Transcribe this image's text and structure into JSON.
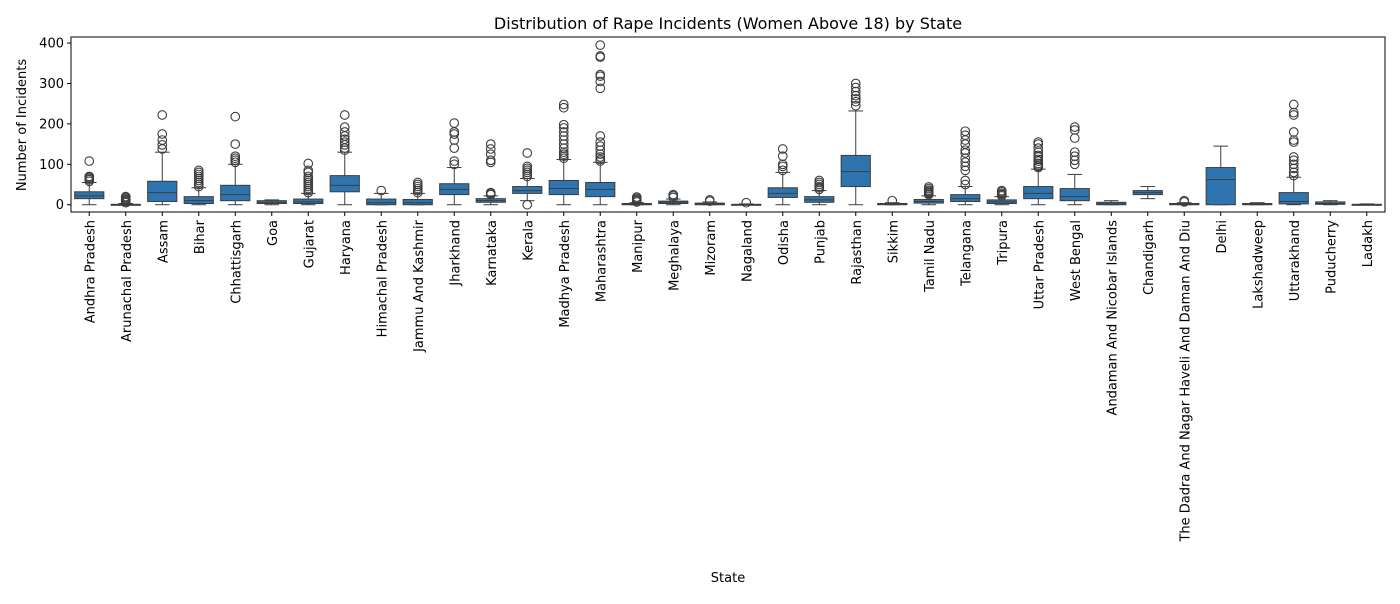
{
  "chart_data": {
    "type": "box",
    "title": "Distribution of Rape Incidents (Women Above 18) by State",
    "xlabel": "State",
    "ylabel": "Number of Incidents",
    "ylim": [
      -18,
      415
    ],
    "yticks": [
      0,
      100,
      200,
      300,
      400
    ],
    "grid": false,
    "box_color": "#2e75b0",
    "categories": [
      "Andhra Pradesh",
      "Arunachal Pradesh",
      "Assam",
      "Bihar",
      "Chhattisgarh",
      "Goa",
      "Gujarat",
      "Haryana",
      "Himachal Pradesh",
      "Jammu And Kashmir",
      "Jharkhand",
      "Karnataka",
      "Kerala",
      "Madhya Pradesh",
      "Maharashtra",
      "Manipur",
      "Meghalaya",
      "Mizoram",
      "Nagaland",
      "Odisha",
      "Punjab",
      "Rajasthan",
      "Sikkim",
      "Tamil Nadu",
      "Telangana",
      "Tripura",
      "Uttar Pradesh",
      "West Bengal",
      "Andaman And Nicobar Islands",
      "Chandigarh",
      "The Dadra And Nagar Haveli And Daman And Diu",
      "Delhi",
      "Lakshadweep",
      "Uttarakhand",
      "Puducherry",
      "Ladakh"
    ],
    "boxes": [
      {
        "min": 0,
        "q1": 15,
        "median": 22,
        "q3": 32,
        "max": 55,
        "outliers": [
          58,
          62,
          65,
          68,
          70,
          108
        ]
      },
      {
        "min": 0,
        "q1": 0,
        "median": 0,
        "q3": 1,
        "max": 3,
        "outliers": [
          5,
          8,
          10,
          12,
          15,
          18,
          20
        ]
      },
      {
        "min": 0,
        "q1": 8,
        "median": 30,
        "q3": 58,
        "max": 130,
        "outliers": [
          138,
          148,
          160,
          175,
          222
        ]
      },
      {
        "min": 0,
        "q1": 3,
        "median": 10,
        "q3": 20,
        "max": 42,
        "outliers": [
          45,
          50,
          55,
          60,
          65,
          70,
          75,
          80,
          85
        ]
      },
      {
        "min": 0,
        "q1": 10,
        "median": 25,
        "q3": 48,
        "max": 100,
        "outliers": [
          105,
          110,
          115,
          120,
          150,
          218
        ]
      },
      {
        "min": 0,
        "q1": 3,
        "median": 6,
        "q3": 10,
        "max": 12,
        "outliers": []
      },
      {
        "min": 0,
        "q1": 3,
        "median": 7,
        "q3": 14,
        "max": 28,
        "outliers": [
          30,
          35,
          40,
          45,
          50,
          55,
          60,
          65,
          70,
          80,
          85,
          102
        ]
      },
      {
        "min": 0,
        "q1": 32,
        "median": 48,
        "q3": 72,
        "max": 130,
        "outliers": [
          135,
          140,
          148,
          155,
          162,
          170,
          180,
          192,
          222
        ]
      },
      {
        "min": 0,
        "q1": 0,
        "median": 5,
        "q3": 14,
        "max": 28,
        "outliers": [
          35
        ]
      },
      {
        "min": 0,
        "q1": 0,
        "median": 5,
        "q3": 13,
        "max": 28,
        "outliers": [
          30,
          35,
          40,
          45,
          50,
          55
        ]
      },
      {
        "min": 0,
        "q1": 25,
        "median": 38,
        "q3": 52,
        "max": 92,
        "outliers": [
          100,
          108,
          140,
          160,
          175,
          180,
          202
        ]
      },
      {
        "min": 0,
        "q1": 6,
        "median": 10,
        "q3": 15,
        "max": 22,
        "outliers": [
          25,
          28,
          30,
          105,
          110,
          125,
          138,
          150
        ]
      },
      {
        "min": 10,
        "q1": 28,
        "median": 35,
        "q3": 45,
        "max": 65,
        "outliers": [
          0,
          70,
          75,
          80,
          85,
          90,
          95,
          128
        ]
      },
      {
        "min": 0,
        "q1": 25,
        "median": 40,
        "q3": 60,
        "max": 112,
        "outliers": [
          115,
          120,
          125,
          130,
          140,
          150,
          160,
          170,
          180,
          190,
          198,
          240,
          248
        ]
      },
      {
        "min": 0,
        "q1": 20,
        "median": 38,
        "q3": 55,
        "max": 105,
        "outliers": [
          108,
          112,
          118,
          125,
          135,
          145,
          155,
          170,
          288,
          305,
          318,
          322,
          365,
          368,
          395
        ]
      },
      {
        "min": 0,
        "q1": 0,
        "median": 1,
        "q3": 3,
        "max": 5,
        "outliers": [
          7,
          10,
          13,
          16,
          19
        ]
      },
      {
        "min": 0,
        "q1": 3,
        "median": 6,
        "q3": 9,
        "max": 14,
        "outliers": [
          18,
          22,
          25
        ]
      },
      {
        "min": 0,
        "q1": 0,
        "median": 2,
        "q3": 4,
        "max": 7,
        "outliers": [
          9,
          12
        ]
      },
      {
        "min": 0,
        "q1": 0,
        "median": 0,
        "q3": 1,
        "max": 2,
        "outliers": [
          5
        ]
      },
      {
        "min": 0,
        "q1": 18,
        "median": 28,
        "q3": 42,
        "max": 80,
        "outliers": [
          85,
          95,
          100,
          120,
          138
        ]
      },
      {
        "min": 0,
        "q1": 6,
        "median": 12,
        "q3": 20,
        "max": 35,
        "outliers": [
          38,
          42,
          45,
          50,
          55,
          60
        ]
      },
      {
        "min": 0,
        "q1": 45,
        "median": 82,
        "q3": 122,
        "max": 232,
        "outliers": [
          245,
          255,
          262,
          270,
          280,
          290,
          300
        ]
      },
      {
        "min": 0,
        "q1": 0,
        "median": 1,
        "q3": 3,
        "max": 5,
        "outliers": [
          10
        ]
      },
      {
        "min": 0,
        "q1": 4,
        "median": 8,
        "q3": 13,
        "max": 22,
        "outliers": [
          25,
          28,
          30,
          33,
          36,
          40,
          44
        ]
      },
      {
        "min": 0,
        "q1": 8,
        "median": 15,
        "q3": 25,
        "max": 45,
        "outliers": [
          50,
          60,
          85,
          95,
          105,
          115,
          128,
          135,
          150,
          160,
          172,
          182
        ]
      },
      {
        "min": 0,
        "q1": 3,
        "median": 7,
        "q3": 12,
        "max": 20,
        "outliers": [
          22,
          25,
          28,
          32,
          35
        ]
      },
      {
        "min": 0,
        "q1": 15,
        "median": 28,
        "q3": 45,
        "max": 88,
        "outliers": [
          92,
          95,
          98,
          102,
          108,
          112,
          118,
          122,
          130,
          140,
          150,
          155
        ]
      },
      {
        "min": 0,
        "q1": 10,
        "median": 20,
        "q3": 40,
        "max": 75,
        "outliers": [
          100,
          110,
          120,
          130,
          165,
          185,
          192
        ]
      },
      {
        "min": 0,
        "q1": 0,
        "median": 2,
        "q3": 6,
        "max": 10,
        "outliers": []
      },
      {
        "min": 15,
        "q1": 25,
        "median": 30,
        "q3": 35,
        "max": 45,
        "outliers": []
      },
      {
        "min": 0,
        "q1": 0,
        "median": 1,
        "q3": 3,
        "max": 5,
        "outliers": [
          7,
          10
        ]
      },
      {
        "min": 0,
        "q1": 0,
        "median": 62,
        "q3": 92,
        "max": 145,
        "outliers": []
      },
      {
        "min": 0,
        "q1": 0,
        "median": 1,
        "q3": 3,
        "max": 5,
        "outliers": []
      },
      {
        "min": 0,
        "q1": 2,
        "median": 8,
        "q3": 30,
        "max": 68,
        "outliers": [
          72,
          80,
          90,
          100,
          110,
          118,
          155,
          160,
          180,
          222,
          228,
          248
        ]
      },
      {
        "min": 0,
        "q1": 1,
        "median": 3,
        "q3": 7,
        "max": 10,
        "outliers": []
      },
      {
        "min": 0,
        "q1": 0,
        "median": 0,
        "q3": 1,
        "max": 2,
        "outliers": []
      }
    ]
  }
}
